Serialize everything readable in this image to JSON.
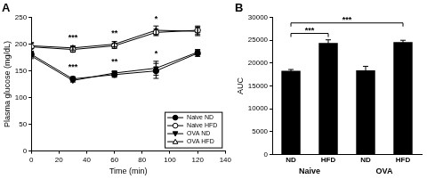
{
  "chart_data": [
    {
      "type": "line",
      "title": "A",
      "x_label": "Time (min)",
      "y_label": "Plasma glucose (mg/dL)",
      "x": [
        0,
        30,
        60,
        90,
        120
      ],
      "xlim": [
        0,
        140
      ],
      "xticks": [
        0,
        20,
        40,
        60,
        80,
        100,
        120,
        140
      ],
      "ylim": [
        0,
        250
      ],
      "yticks": [
        0,
        50,
        100,
        150,
        200,
        250
      ],
      "grid": false,
      "legend": "lower right",
      "series": [
        {
          "name": "Naive ND",
          "color": "#000000",
          "marker": "circle",
          "values": [
            181,
            135,
            143,
            150,
            183
          ],
          "errors": [
            4,
            4,
            5,
            14,
            6
          ]
        },
        {
          "name": "Naive HFD",
          "color": "#000000",
          "marker": "circle-open",
          "values": [
            195,
            190,
            197,
            222,
            226
          ],
          "errors": [
            8,
            5,
            5,
            6,
            8
          ]
        },
        {
          "name": "OVA ND",
          "color": "#000000",
          "marker": "triangle-down",
          "values": [
            178,
            132,
            146,
            155,
            185
          ],
          "errors": [
            5,
            3,
            4,
            13,
            5
          ]
        },
        {
          "name": "OVA HFD",
          "color": "#000000",
          "marker": "triangle-open",
          "values": [
            197,
            193,
            200,
            226,
            224
          ],
          "errors": [
            5,
            4,
            5,
            8,
            8
          ]
        }
      ],
      "annotations": [
        {
          "x": 30,
          "y": 205,
          "text": "***"
        },
        {
          "x": 30,
          "y": 150,
          "text": "***"
        },
        {
          "x": 60,
          "y": 212,
          "text": "**"
        },
        {
          "x": 60,
          "y": 160,
          "text": "**"
        },
        {
          "x": 90,
          "y": 240,
          "text": "*"
        },
        {
          "x": 90,
          "y": 175,
          "text": "*"
        }
      ]
    },
    {
      "type": "bar",
      "title": "B",
      "y_label": "AUC",
      "categories": [
        "ND",
        "HFD",
        "ND",
        "HFD"
      ],
      "groups": [
        "Naive",
        "Naive",
        "OVA",
        "OVA"
      ],
      "values": [
        18300,
        24400,
        18400,
        24600
      ],
      "errors": [
        300,
        700,
        900,
        400
      ],
      "color": "#000000",
      "ylim": [
        0,
        30000
      ],
      "yticks": [
        0,
        5000,
        10000,
        15000,
        20000,
        25000,
        30000
      ],
      "grid": false,
      "brackets": [
        {
          "from": 0,
          "to": 1,
          "y": 26500,
          "text": "***"
        },
        {
          "from": 0,
          "to": 3,
          "y": 28800,
          "text": "***"
        }
      ]
    }
  ]
}
